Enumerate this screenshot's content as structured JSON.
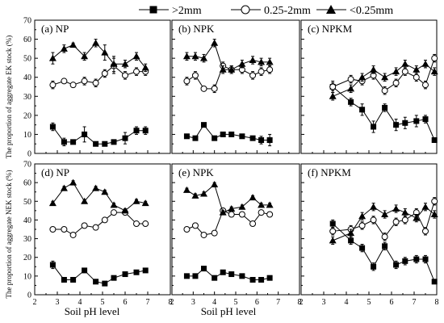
{
  "legend": {
    "placement": "top",
    "items": [
      {
        "label": ">2mm",
        "marker": "square-filled"
      },
      {
        "label": "0.25-2mm",
        "marker": "circle-open"
      },
      {
        "label": "<0.25mm",
        "marker": "triangle-filled"
      }
    ]
  },
  "ylabel_top": "The proportion of aggregate EK stock (%)",
  "ylabel_bottom": "The proportion of aggregate NEK stock (%)",
  "xlabel": "Soil pH level",
  "chart_data": [
    {
      "type": "line",
      "title": "(a) NP",
      "xlim": [
        2,
        8
      ],
      "ylim": [
        0,
        70
      ],
      "xticks": [
        "2",
        "3",
        "4",
        "5",
        "6",
        "7",
        "8"
      ],
      "yticks": [
        "0",
        "10",
        "20",
        "30",
        "40",
        "50",
        "60",
        "70"
      ],
      "series": [
        {
          "name": ">2mm",
          "x": [
            2.8,
            3.3,
            3.7,
            4.2,
            4.7,
            5.1,
            5.5,
            6.0,
            6.5,
            6.9
          ],
          "y": [
            14,
            6,
            6,
            10,
            5,
            5,
            6,
            8,
            12,
            12
          ],
          "err": [
            2,
            2,
            1,
            4,
            1,
            1,
            1,
            3,
            2,
            2
          ]
        },
        {
          "name": "0.25-2mm",
          "x": [
            2.8,
            3.3,
            3.7,
            4.2,
            4.7,
            5.1,
            5.5,
            6.0,
            6.5,
            6.9
          ],
          "y": [
            36,
            38,
            36,
            38,
            37,
            42,
            46,
            41,
            43,
            43
          ],
          "err": [
            2,
            1,
            1,
            2,
            2,
            2,
            4,
            2,
            2,
            2
          ]
        },
        {
          "name": "<0.25mm",
          "x": [
            2.8,
            3.3,
            3.7,
            4.2,
            4.7,
            5.1,
            5.5,
            6.0,
            6.5,
            6.9
          ],
          "y": [
            50,
            55,
            57,
            51,
            58,
            53,
            47,
            47,
            51,
            45
          ],
          "err": [
            3,
            2,
            1,
            2,
            2,
            4,
            4,
            2,
            2,
            2
          ]
        }
      ]
    },
    {
      "type": "line",
      "title": "(b) NPK",
      "xlim": [
        2,
        8
      ],
      "ylim": [
        0,
        70
      ],
      "xticks": [
        "2",
        "3",
        "4",
        "5",
        "6",
        "7",
        "8"
      ],
      "yticks": [],
      "series": [
        {
          "name": ">2mm",
          "x": [
            2.7,
            3.1,
            3.5,
            4.0,
            4.4,
            4.8,
            5.3,
            5.8,
            6.2,
            6.6
          ],
          "y": [
            9,
            8,
            15,
            8,
            10,
            10,
            9,
            8,
            7,
            7
          ],
          "err": [
            1,
            1,
            1,
            1,
            1,
            1,
            1,
            1,
            2,
            3
          ]
        },
        {
          "name": "0.25-2mm",
          "x": [
            2.7,
            3.1,
            3.5,
            4.0,
            4.4,
            4.8,
            5.3,
            5.8,
            6.2,
            6.6
          ],
          "y": [
            38,
            41,
            34,
            34,
            46,
            44,
            44,
            41,
            43,
            44
          ],
          "err": [
            2,
            2,
            1,
            2,
            2,
            2,
            2,
            2,
            2,
            2
          ]
        },
        {
          "name": "<0.25mm",
          "x": [
            2.7,
            3.1,
            3.5,
            4.0,
            4.4,
            4.8,
            5.3,
            5.8,
            6.2,
            6.6
          ],
          "y": [
            51,
            51,
            50,
            58,
            44,
            44,
            47,
            49,
            48,
            48
          ],
          "err": [
            2,
            2,
            2,
            2,
            2,
            2,
            2,
            2,
            2,
            2
          ]
        }
      ]
    },
    {
      "type": "line",
      "title": "(c) NPKM",
      "xlim": [
        2,
        8
      ],
      "ylim": [
        0,
        70
      ],
      "xticks": [
        "2",
        "3",
        "4",
        "5",
        "6",
        "7",
        "8"
      ],
      "yticks": [],
      "series": [
        {
          "name": ">2mm",
          "x": [
            3.4,
            4.2,
            4.7,
            5.2,
            5.7,
            6.2,
            6.6,
            7.1,
            7.5,
            7.9
          ],
          "y": [
            35,
            27,
            23,
            14,
            24,
            15,
            16,
            17,
            18,
            7
          ],
          "err": [
            3,
            2,
            3,
            3,
            2,
            3,
            3,
            3,
            2,
            1
          ]
        },
        {
          "name": "0.25-2mm",
          "x": [
            3.4,
            4.2,
            4.7,
            5.2,
            5.7,
            6.2,
            6.6,
            7.1,
            7.5,
            7.9
          ],
          "y": [
            35,
            39,
            38,
            41,
            33,
            37,
            43,
            40,
            36,
            50
          ],
          "err": [
            2,
            2,
            2,
            2,
            2,
            2,
            2,
            2,
            2,
            2
          ]
        },
        {
          "name": "<0.25mm",
          "x": [
            3.4,
            4.2,
            4.7,
            5.2,
            5.7,
            6.2,
            6.6,
            7.1,
            7.5,
            7.9
          ],
          "y": [
            30,
            34,
            40,
            44,
            40,
            43,
            47,
            44,
            47,
            43
          ],
          "err": [
            2,
            2,
            2,
            2,
            2,
            2,
            2,
            2,
            2,
            2
          ]
        }
      ]
    },
    {
      "type": "line",
      "title": "(d) NP",
      "xlim": [
        2,
        8
      ],
      "ylim": [
        0,
        70
      ],
      "xticks": [
        "2",
        "3",
        "4",
        "5",
        "6",
        "7",
        "8"
      ],
      "yticks": [
        "0",
        "10",
        "20",
        "30",
        "40",
        "50",
        "60",
        "70"
      ],
      "series": [
        {
          "name": ">2mm",
          "x": [
            2.8,
            3.3,
            3.7,
            4.2,
            4.7,
            5.1,
            5.5,
            6.0,
            6.5,
            6.9
          ],
          "y": [
            16,
            8,
            8,
            13,
            7,
            6,
            9,
            11,
            12,
            13
          ],
          "err": [
            2,
            1,
            1,
            1,
            1,
            1,
            1,
            1,
            1,
            1
          ]
        },
        {
          "name": "0.25-2mm",
          "x": [
            2.8,
            3.3,
            3.7,
            4.2,
            4.7,
            5.1,
            5.5,
            6.0,
            6.5,
            6.9
          ],
          "y": [
            35,
            35,
            32,
            37,
            36,
            40,
            44,
            44,
            38,
            38
          ],
          "err": [
            1,
            1,
            1,
            1,
            1,
            1,
            1,
            1,
            1,
            1
          ]
        },
        {
          "name": "<0.25mm",
          "x": [
            2.8,
            3.3,
            3.7,
            4.2,
            4.7,
            5.1,
            5.5,
            6.0,
            6.5,
            6.9
          ],
          "y": [
            49,
            57,
            60,
            50,
            57,
            55,
            48,
            45,
            50,
            49
          ],
          "err": [
            1,
            1,
            1,
            1,
            1,
            1,
            1,
            1,
            1,
            1
          ]
        }
      ]
    },
    {
      "type": "line",
      "title": "(e) NPK",
      "xlim": [
        2,
        8
      ],
      "ylim": [
        0,
        70
      ],
      "xticks": [
        "2",
        "3",
        "4",
        "5",
        "6",
        "7",
        "8"
      ],
      "yticks": [],
      "series": [
        {
          "name": ">2mm",
          "x": [
            2.7,
            3.1,
            3.5,
            4.0,
            4.4,
            4.8,
            5.3,
            5.8,
            6.2,
            6.6
          ],
          "y": [
            10,
            10,
            14,
            9,
            12,
            11,
            10,
            8,
            8,
            9
          ],
          "err": [
            1,
            1,
            1,
            1,
            1,
            1,
            1,
            1,
            1,
            1
          ]
        },
        {
          "name": "0.25-2mm",
          "x": [
            2.7,
            3.1,
            3.5,
            4.0,
            4.4,
            4.8,
            5.3,
            5.8,
            6.2,
            6.6
          ],
          "y": [
            35,
            37,
            32,
            33,
            45,
            43,
            43,
            38,
            44,
            43
          ],
          "err": [
            1,
            1,
            1,
            1,
            1,
            1,
            1,
            1,
            1,
            1
          ]
        },
        {
          "name": "<0.25mm",
          "x": [
            2.7,
            3.1,
            3.5,
            4.0,
            4.4,
            4.8,
            5.3,
            5.8,
            6.2,
            6.6
          ],
          "y": [
            56,
            53,
            54,
            59,
            44,
            46,
            47,
            52,
            48,
            48
          ],
          "err": [
            1,
            1,
            1,
            1,
            1,
            1,
            1,
            1,
            1,
            1
          ]
        }
      ]
    },
    {
      "type": "line",
      "title": "(f) NPKM",
      "xlim": [
        2,
        8
      ],
      "ylim": [
        0,
        70
      ],
      "xticks": [
        "2",
        "3",
        "4",
        "5",
        "6",
        "7",
        "8"
      ],
      "yticks": [],
      "series": [
        {
          "name": ">2mm",
          "x": [
            3.4,
            4.2,
            4.7,
            5.2,
            5.7,
            6.2,
            6.6,
            7.1,
            7.5,
            7.9
          ],
          "y": [
            38,
            29,
            25,
            15,
            26,
            16,
            18,
            19,
            19,
            7
          ],
          "err": [
            2,
            2,
            2,
            2,
            2,
            2,
            2,
            2,
            2,
            1
          ]
        },
        {
          "name": "0.25-2mm",
          "x": [
            3.4,
            4.2,
            4.7,
            5.2,
            5.7,
            6.2,
            6.6,
            7.1,
            7.5,
            7.9
          ],
          "y": [
            34,
            35,
            37,
            40,
            31,
            39,
            40,
            44,
            34,
            50
          ],
          "err": [
            2,
            2,
            2,
            2,
            2,
            2,
            2,
            2,
            2,
            2
          ]
        },
        {
          "name": "<0.25mm",
          "x": [
            3.4,
            4.2,
            4.7,
            5.2,
            5.7,
            6.2,
            6.6,
            7.1,
            7.5,
            7.9
          ],
          "y": [
            29,
            33,
            42,
            47,
            43,
            46,
            44,
            41,
            47,
            43
          ],
          "err": [
            2,
            2,
            2,
            2,
            2,
            2,
            2,
            2,
            2,
            2
          ]
        }
      ]
    }
  ]
}
